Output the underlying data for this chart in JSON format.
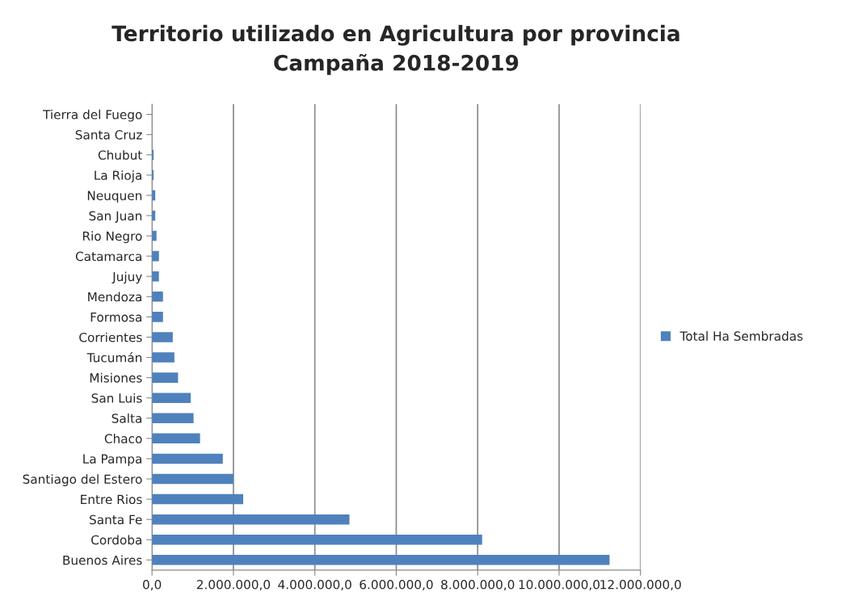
{
  "chart_data": {
    "type": "bar",
    "orientation": "horizontal",
    "title": "Territorio utilizado en Agricultura por provincia\nCampaña 2018-2019",
    "categories": [
      "Tierra del Fuego",
      "Santa Cruz",
      "Chubut",
      "La Rioja",
      "Neuquen",
      "San Juan",
      "Rio Negro",
      "Catamarca",
      "Jujuy",
      "Mendoza",
      "Formosa",
      "Corrientes",
      "Tucumán",
      "Misiones",
      "San Luis",
      "Salta",
      "Chaco",
      "La Pampa",
      "Santiago del Estero",
      "Entre Rios",
      "Santa Fe",
      "Cordoba",
      "Buenos Aires"
    ],
    "series": [
      {
        "name": "Total Ha Sembradas",
        "color": "#4f81bd",
        "values": [
          null,
          null,
          40000,
          40000,
          80000,
          80000,
          110000,
          170000,
          170000,
          270000,
          270000,
          510000,
          550000,
          640000,
          950000,
          1020000,
          1180000,
          1740000,
          2000000,
          2240000,
          4850000,
          8110000,
          11240000
        ]
      }
    ],
    "xlim": [
      0,
      12000000
    ],
    "xticks": [
      {
        "value": 0,
        "label": "0,0"
      },
      {
        "value": 2000000,
        "label": "2.000.000,0"
      },
      {
        "value": 4000000,
        "label": "4.000.000,0"
      },
      {
        "value": 6000000,
        "label": "6.000.000,0"
      },
      {
        "value": 8000000,
        "label": "8.000.000,0"
      },
      {
        "value": 10000000,
        "label": "10.000.000,0"
      },
      {
        "value": 12000000,
        "label": "12.000.000,0"
      }
    ],
    "grid": "x",
    "legend": "right"
  }
}
